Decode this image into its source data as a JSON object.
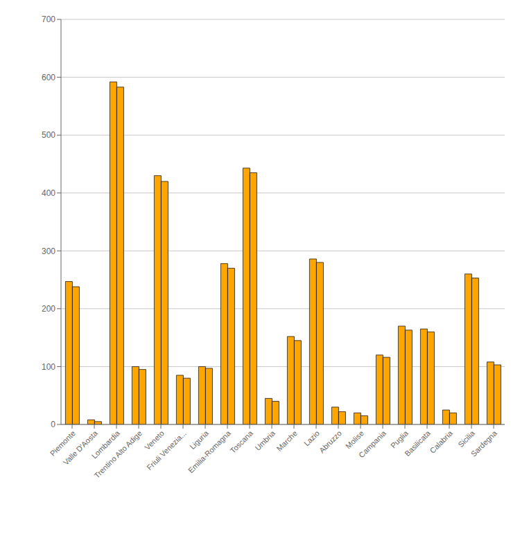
{
  "chart_data": {
    "type": "bar",
    "categories": [
      "Piemonte",
      "Valle D'Aosta",
      "Lombardia",
      "Trentino Alto Adige",
      "Veneto",
      "Friuli Venezia...",
      "Liguria",
      "Emilia-Romagna",
      "Toscana",
      "Umbria",
      "Marche",
      "Lazio",
      "Abruzzo",
      "Molise",
      "Campania",
      "Puglia",
      "Basilicata",
      "Calabria",
      "Sicilia",
      "Sardegna"
    ],
    "series": [
      {
        "color": "#FFA500",
        "values": [
          247,
          8,
          592,
          100,
          430,
          85,
          100,
          278,
          443,
          45,
          152,
          286,
          30,
          20,
          120,
          170,
          165,
          25,
          260,
          108
        ]
      },
      {
        "color": "#FFA500",
        "values": [
          238,
          5,
          583,
          95,
          420,
          80,
          97,
          270,
          435,
          40,
          145,
          280,
          22,
          15,
          116,
          163,
          160,
          20,
          253,
          103
        ]
      }
    ],
    "ylim": [
      0,
      700
    ],
    "yticks": [
      0,
      100,
      200,
      300,
      400,
      500,
      600,
      700
    ],
    "grid": true
  }
}
